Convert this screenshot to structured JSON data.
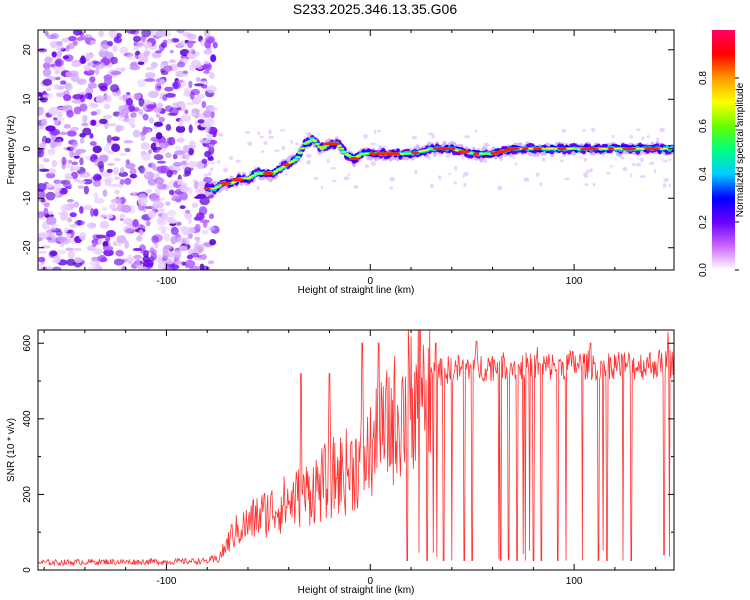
{
  "title": "S233.2025.346.13.35.G06",
  "chart_data": [
    {
      "type": "heatmap",
      "xlabel": "Height of straight line (km)",
      "ylabel": "Frequency (Hz)",
      "xlim": [
        -163,
        149
      ],
      "ylim": [
        -24.5,
        24
      ],
      "xticks": [
        -100,
        0,
        100
      ],
      "yticks": [
        -20,
        -10,
        0,
        10,
        20
      ],
      "colorbar": {
        "label": "Normalized spectral amplitude",
        "range": [
          0,
          1
        ],
        "ticks": [
          0.0,
          0.2,
          0.4,
          0.6,
          0.8
        ],
        "colors": [
          "#ffffff",
          "#cc66ff",
          "#6a00ff",
          "#0000ff",
          "#00ccff",
          "#00ff80",
          "#66ff00",
          "#ffff00",
          "#ff9900",
          "#ff0000",
          "#ff0066"
        ]
      },
      "ridge": {
        "x": [
          -80,
          -76,
          -72,
          -68,
          -64,
          -60,
          -56,
          -52,
          -48,
          -44,
          -40,
          -36,
          -32,
          -28,
          -24,
          -20,
          -16,
          -12,
          -8,
          -4,
          0,
          10,
          20,
          30,
          40,
          50,
          60,
          70,
          80,
          90,
          100,
          110,
          120,
          130,
          140,
          149
        ],
        "freq": [
          -8,
          -8,
          -7,
          -7,
          -6,
          -6,
          -5,
          -5,
          -5,
          -4,
          -3,
          -2,
          1,
          2,
          0,
          1,
          1,
          -1,
          -2,
          -1,
          -1,
          -1,
          -1,
          0,
          0,
          -1,
          -1,
          0,
          0,
          0,
          0,
          0,
          0,
          0,
          0,
          0
        ]
      },
      "noise_region_x": [
        -163,
        -80
      ]
    },
    {
      "type": "line",
      "xlabel": "Height of straight line (km)",
      "ylabel": "SNR (10 * v/v)",
      "xlim": [
        -163,
        149
      ],
      "ylim": [
        0,
        635
      ],
      "xticks": [
        -100,
        0,
        100
      ],
      "yticks": [
        0,
        200,
        400,
        600
      ],
      "series": [
        {
          "name": "SNR",
          "color": "#ff3333",
          "x": [
            -163,
            -150,
            -140,
            -130,
            -120,
            -110,
            -100,
            -90,
            -80,
            -75,
            -72,
            -68,
            -64,
            -60,
            -56,
            -52,
            -48,
            -44,
            -40,
            -36,
            -32,
            -28,
            -24,
            -20,
            -16,
            -12,
            -8,
            -4,
            0,
            4,
            8,
            12,
            16,
            20,
            24,
            28,
            32,
            36,
            40,
            50,
            60,
            70,
            80,
            90,
            100,
            110,
            120,
            130,
            140,
            149
          ],
          "values": [
            20,
            20,
            21,
            22,
            21,
            22,
            22,
            23,
            24,
            28,
            50,
            90,
            110,
            120,
            140,
            150,
            160,
            170,
            180,
            190,
            200,
            215,
            225,
            240,
            250,
            260,
            275,
            290,
            310,
            340,
            370,
            400,
            430,
            470,
            490,
            505,
            515,
            525,
            530,
            535,
            540,
            540,
            535,
            540,
            545,
            540,
            545,
            540,
            545,
            550
          ]
        }
      ],
      "spikes": {
        "high": [
          [
            -4,
            600
          ],
          [
            4,
            600
          ],
          [
            -20,
            520
          ],
          [
            -34,
            520
          ],
          [
            32,
            600
          ],
          [
            52,
            605
          ],
          [
            82,
            590
          ],
          [
            108,
            600
          ],
          [
            146,
            630
          ]
        ],
        "low": [
          [
            18,
            25
          ],
          [
            28,
            25
          ],
          [
            36,
            25
          ],
          [
            40,
            25
          ],
          [
            46,
            25
          ],
          [
            50,
            25
          ],
          [
            64,
            25
          ],
          [
            68,
            25
          ],
          [
            72,
            25
          ],
          [
            76,
            25
          ],
          [
            80,
            25
          ],
          [
            84,
            25
          ],
          [
            92,
            25
          ],
          [
            96,
            25
          ],
          [
            104,
            25
          ],
          [
            112,
            25
          ],
          [
            116,
            25
          ],
          [
            124,
            25
          ],
          [
            128,
            25
          ],
          [
            144,
            40
          ]
        ]
      }
    }
  ]
}
